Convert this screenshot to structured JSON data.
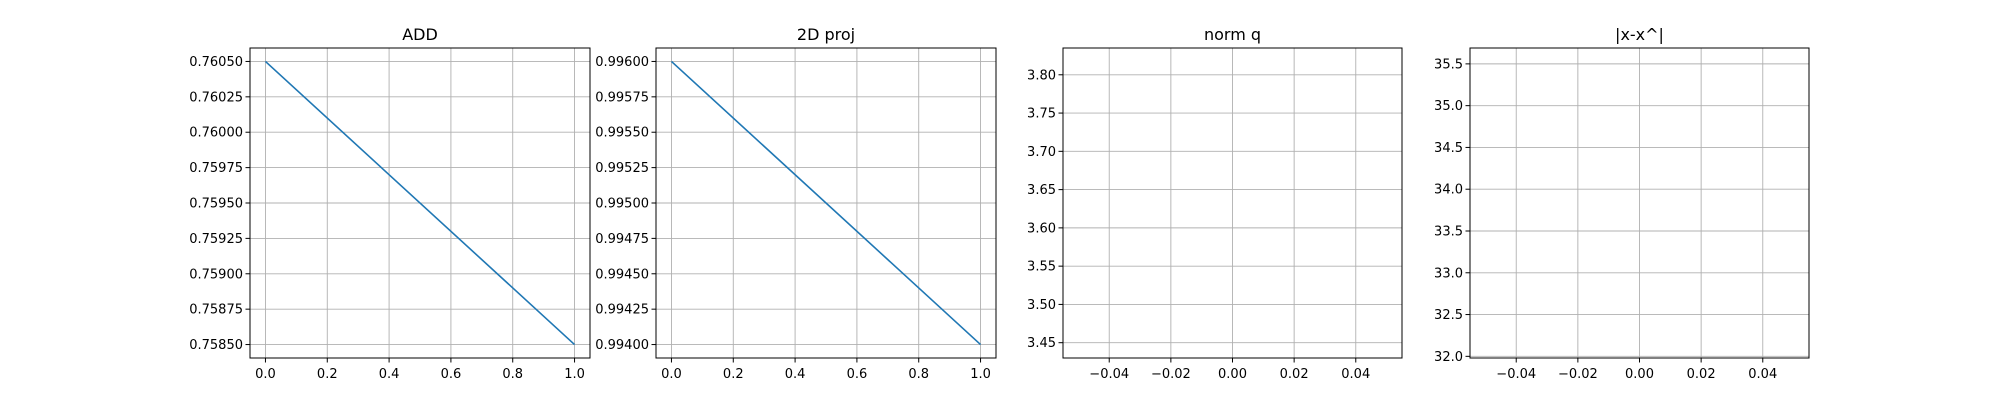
{
  "figure": {
    "background": "#ffffff"
  },
  "chart_data": [
    {
      "type": "line",
      "title": "ADD",
      "xlabel": "",
      "ylabel": "",
      "xlim": [
        -0.05,
        1.05
      ],
      "ylim": [
        0.758405,
        0.760595
      ],
      "xticks": [
        0.0,
        0.2,
        0.4,
        0.6,
        0.8,
        1.0
      ],
      "xtick_labels": [
        "0.0",
        "0.2",
        "0.4",
        "0.6",
        "0.8",
        "1.0"
      ],
      "yticks": [
        0.7585,
        0.75875,
        0.759,
        0.75925,
        0.7595,
        0.75975,
        0.76,
        0.76025,
        0.7605
      ],
      "ytick_labels": [
        "0.75850",
        "0.75875",
        "0.75900",
        "0.75925",
        "0.75950",
        "0.75975",
        "0.76000",
        "0.76025",
        "0.76050"
      ],
      "grid": true,
      "series": [
        {
          "x": [
            0,
            1
          ],
          "y": [
            0.7605,
            0.7585
          ],
          "color": "#1f77b4"
        }
      ]
    },
    {
      "type": "line",
      "title": "2D proj",
      "xlabel": "",
      "ylabel": "",
      "xlim": [
        -0.05,
        1.05
      ],
      "ylim": [
        0.993905,
        0.996095
      ],
      "xticks": [
        0.0,
        0.2,
        0.4,
        0.6,
        0.8,
        1.0
      ],
      "xtick_labels": [
        "0.0",
        "0.2",
        "0.4",
        "0.6",
        "0.8",
        "1.0"
      ],
      "yticks": [
        0.994,
        0.99425,
        0.9945,
        0.99475,
        0.995,
        0.99525,
        0.9955,
        0.99575,
        0.996
      ],
      "ytick_labels": [
        "0.99400",
        "0.99425",
        "0.99450",
        "0.99475",
        "0.99500",
        "0.99525",
        "0.99550",
        "0.99575",
        "0.99600"
      ],
      "grid": true,
      "series": [
        {
          "x": [
            0,
            1
          ],
          "y": [
            0.996,
            0.994
          ],
          "color": "#1f77b4"
        }
      ]
    },
    {
      "type": "line",
      "title": "norm q",
      "xlabel": "",
      "ylabel": "",
      "xlim": [
        -0.055,
        0.055
      ],
      "ylim": [
        3.43,
        3.835
      ],
      "xticks": [
        -0.04,
        -0.02,
        0.0,
        0.02,
        0.04
      ],
      "xtick_labels": [
        "−0.04",
        "−0.02",
        "0.00",
        "0.02",
        "0.04"
      ],
      "yticks": [
        3.45,
        3.5,
        3.55,
        3.6,
        3.65,
        3.7,
        3.75,
        3.8
      ],
      "ytick_labels": [
        "3.45",
        "3.50",
        "3.55",
        "3.60",
        "3.65",
        "3.70",
        "3.75",
        "3.80"
      ],
      "grid": true,
      "series": []
    },
    {
      "type": "line",
      "title": "|x-x^|",
      "xlabel": "",
      "ylabel": "",
      "xlim": [
        -0.055,
        0.055
      ],
      "ylim": [
        31.98,
        35.69
      ],
      "xticks": [
        -0.04,
        -0.02,
        0.0,
        0.02,
        0.04
      ],
      "xtick_labels": [
        "−0.04",
        "−0.02",
        "0.00",
        "0.02",
        "0.04"
      ],
      "yticks": [
        32.0,
        32.5,
        33.0,
        33.5,
        34.0,
        34.5,
        35.0,
        35.5
      ],
      "ytick_labels": [
        "32.0",
        "32.5",
        "33.0",
        "33.5",
        "34.0",
        "34.5",
        "35.0",
        "35.5"
      ],
      "grid": true,
      "series": []
    }
  ]
}
